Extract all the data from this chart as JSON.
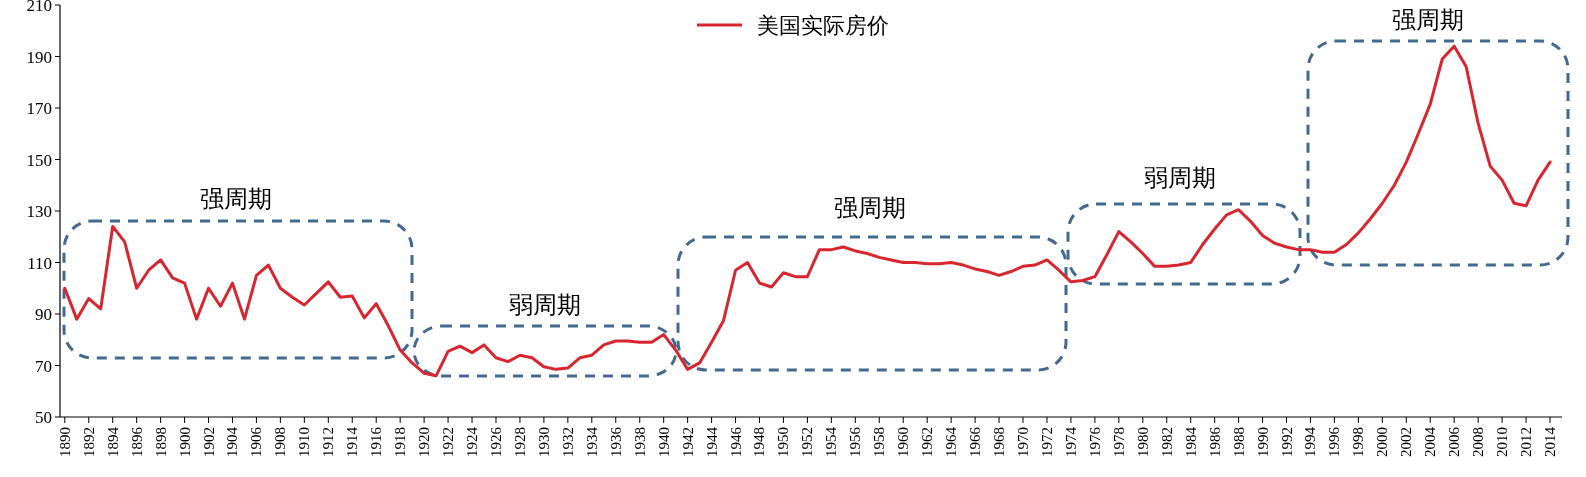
{
  "chart_data": {
    "type": "line",
    "x": [
      1890,
      1891,
      1892,
      1893,
      1894,
      1895,
      1896,
      1897,
      1898,
      1899,
      1900,
      1901,
      1902,
      1903,
      1904,
      1905,
      1906,
      1907,
      1908,
      1909,
      1910,
      1911,
      1912,
      1913,
      1914,
      1915,
      1916,
      1917,
      1918,
      1919,
      1920,
      1921,
      1922,
      1923,
      1924,
      1925,
      1926,
      1927,
      1928,
      1929,
      1930,
      1931,
      1932,
      1933,
      1934,
      1935,
      1936,
      1937,
      1938,
      1939,
      1940,
      1941,
      1942,
      1943,
      1944,
      1945,
      1946,
      1947,
      1948,
      1949,
      1950,
      1951,
      1952,
      1953,
      1954,
      1955,
      1956,
      1957,
      1958,
      1959,
      1960,
      1961,
      1962,
      1963,
      1964,
      1965,
      1966,
      1967,
      1968,
      1969,
      1970,
      1971,
      1972,
      1973,
      1974,
      1975,
      1976,
      1977,
      1978,
      1979,
      1980,
      1981,
      1982,
      1983,
      1984,
      1985,
      1986,
      1987,
      1988,
      1989,
      1990,
      1991,
      1992,
      1993,
      1994,
      1995,
      1996,
      1997,
      1998,
      1999,
      2000,
      2001,
      2002,
      2003,
      2004,
      2005,
      2006,
      2007,
      2008,
      2009,
      2010,
      2011,
      2012,
      2013,
      2014
    ],
    "series": [
      {
        "name": "美国实际房价",
        "color": "#d7262f",
        "values": [
          100,
          88,
          96,
          92,
          124,
          118,
          100,
          107,
          111,
          104,
          102,
          88,
          100,
          93,
          102,
          88,
          105,
          109,
          100,
          96.5,
          93.5,
          98,
          102.5,
          96.5,
          97,
          88.5,
          94,
          85.5,
          76,
          71,
          67,
          66,
          75.5,
          77.5,
          75,
          78,
          73,
          71.5,
          74,
          73,
          69.5,
          68.5,
          69,
          73,
          74,
          78,
          79.5,
          79.5,
          79,
          79,
          82,
          76,
          68.5,
          71,
          79,
          87.5,
          107,
          110,
          102,
          100.5,
          106,
          104.5,
          104.5,
          115,
          115,
          116,
          114.5,
          113.5,
          112,
          111,
          110,
          110,
          109.5,
          109.5,
          110,
          109,
          107.5,
          106.5,
          105,
          106.5,
          108.5,
          109,
          111,
          107,
          102.5,
          103,
          104.5,
          113,
          122,
          118,
          113.5,
          108.5,
          108.5,
          109,
          110,
          117,
          123,
          128.5,
          130.5,
          126,
          120.5,
          117.5,
          116,
          115,
          115,
          114,
          114,
          117,
          121.5,
          127,
          133,
          140,
          149,
          160,
          171.5,
          189,
          194,
          186,
          164,
          147.5,
          142,
          133,
          132,
          142,
          149
        ]
      }
    ],
    "xlim": [
      1889.6,
      2015
    ],
    "xticks": [
      1890,
      1892,
      1894,
      1896,
      1898,
      1900,
      1902,
      1904,
      1906,
      1908,
      1910,
      1912,
      1914,
      1916,
      1918,
      1920,
      1922,
      1924,
      1926,
      1928,
      1930,
      1932,
      1934,
      1936,
      1938,
      1940,
      1942,
      1944,
      1946,
      1948,
      1950,
      1952,
      1954,
      1956,
      1958,
      1960,
      1962,
      1964,
      1966,
      1968,
      1970,
      1972,
      1974,
      1976,
      1978,
      1980,
      1982,
      1984,
      1986,
      1988,
      1990,
      1992,
      1994,
      1996,
      1998,
      2000,
      2002,
      2004,
      2006,
      2008,
      2010,
      2012,
      2014
    ],
    "ylim": [
      50,
      210
    ],
    "yticks": [
      50,
      70,
      90,
      110,
      130,
      150,
      170,
      190,
      210
    ],
    "grid": false,
    "legend": "top",
    "annotations": [
      "强周期",
      "弱周期",
      "强周期",
      "弱周期",
      "强周期"
    ]
  }
}
